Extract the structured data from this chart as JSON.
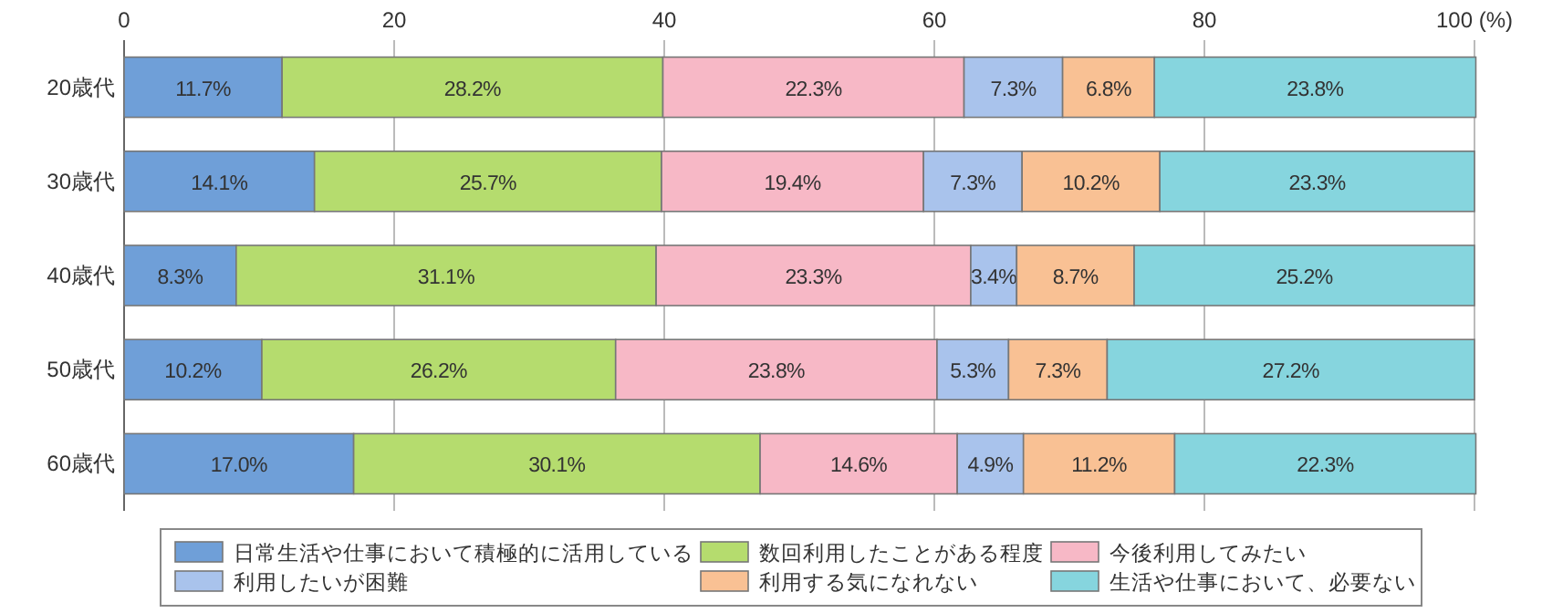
{
  "chart_data": {
    "type": "bar",
    "orientation": "horizontal",
    "stacked": true,
    "categories": [
      "20歳代",
      "30歳代",
      "40歳代",
      "50歳代",
      "60歳代"
    ],
    "xlim": [
      0,
      100
    ],
    "xticks": [
      0,
      20,
      40,
      60,
      80,
      {
        "value": 100,
        "label": "100 (%)"
      }
    ],
    "grid": "x",
    "legend": "bottom",
    "series": [
      {
        "name": "日常生活や仕事において積極的に活用している",
        "color": "#6f9fd8",
        "values": [
          11.7,
          14.1,
          8.3,
          10.2,
          17.0
        ],
        "value_labels": [
          "11.7%",
          "14.1%",
          "8.3%",
          "10.2%",
          "17.0%"
        ]
      },
      {
        "name": "数回利用したことがある程度",
        "color": "#b5dc6e",
        "values": [
          28.2,
          25.7,
          31.1,
          26.2,
          30.1
        ],
        "value_labels": [
          "28.2%",
          "25.7%",
          "31.1%",
          "26.2%",
          "30.1%"
        ]
      },
      {
        "name": "今後利用してみたい",
        "color": "#f7b8c6",
        "values": [
          22.3,
          19.4,
          23.3,
          23.8,
          14.6
        ],
        "value_labels": [
          "22.3%",
          "19.4%",
          "23.3%",
          "23.8%",
          "14.6%"
        ]
      },
      {
        "name": "利用したいが困難",
        "color": "#a9c3ec",
        "values": [
          7.3,
          7.3,
          3.4,
          5.3,
          4.9
        ],
        "value_labels": [
          "7.3%",
          "7.3%",
          "3.4%",
          "5.3%",
          "4.9%"
        ]
      },
      {
        "name": "利用する気になれない",
        "color": "#f9c194",
        "values": [
          6.8,
          10.2,
          8.7,
          7.3,
          11.2
        ],
        "value_labels": [
          "6.8%",
          "10.2%",
          "8.7%",
          "7.3%",
          "11.2%"
        ]
      },
      {
        "name": "生活や仕事において、必要ない",
        "color": "#86d5de",
        "values": [
          23.8,
          23.3,
          25.2,
          27.2,
          22.3
        ],
        "value_labels": [
          "23.8%",
          "23.3%",
          "25.2%",
          "27.2%",
          "22.3%"
        ]
      }
    ]
  }
}
